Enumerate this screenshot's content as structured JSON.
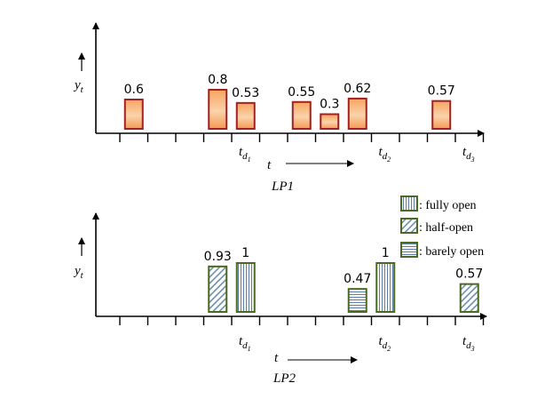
{
  "chart_data": [
    {
      "type": "bar",
      "name": "LP1",
      "label": "LP1",
      "ylabel": "y",
      "ylabel_sub": "t",
      "xlabel": "t",
      "style": "gradient",
      "values": [
        {
          "slot": 1,
          "value": 0.6
        },
        {
          "slot": 4,
          "value": 0.8
        },
        {
          "slot": 5,
          "value": 0.53
        },
        {
          "slot": 7,
          "value": 0.55
        },
        {
          "slot": 8,
          "value": 0.3
        },
        {
          "slot": 9,
          "value": 0.62
        },
        {
          "slot": 12,
          "value": 0.57
        }
      ],
      "deadlines": [
        {
          "label": "t",
          "sub": "d",
          "subsub": "1",
          "slot": 5
        },
        {
          "label": "t",
          "sub": "d",
          "subsub": "2",
          "slot": 10
        },
        {
          "label": "t",
          "sub": "d",
          "subsub": "3",
          "slot": 13
        }
      ]
    },
    {
      "type": "bar",
      "name": "LP2",
      "label": "LP2",
      "ylabel": "y",
      "ylabel_sub": "t",
      "xlabel": "t",
      "values": [
        {
          "slot": 4,
          "value": 0.93,
          "state": "half-open"
        },
        {
          "slot": 5,
          "value": 1,
          "state": "fully open"
        },
        {
          "slot": 9,
          "value": 0.47,
          "state": "barely open"
        },
        {
          "slot": 10,
          "value": 1,
          "state": "fully open"
        },
        {
          "slot": 13,
          "value": 0.57,
          "state": "half-open"
        }
      ],
      "deadlines": [
        {
          "label": "t",
          "sub": "d",
          "subsub": "1",
          "slot": 5
        },
        {
          "label": "t",
          "sub": "d",
          "subsub": "2",
          "slot": 10
        },
        {
          "label": "t",
          "sub": "d",
          "subsub": "3",
          "slot": 13
        }
      ]
    }
  ],
  "legend": [
    {
      "key": "fully open",
      "label": ": fully open"
    },
    {
      "key": "half-open",
      "label": ": half-open"
    },
    {
      "key": "barely open",
      "label": ": barely open"
    }
  ],
  "colors": {
    "lp1_stroke": "#a32020",
    "lp1_fill_top": "#f6a560",
    "lp1_fill_bottom": "#fce8d6",
    "lp2_stroke": "#4a6b1f",
    "lp2_pattern": "#5b7fa8",
    "axis": "#000000"
  }
}
